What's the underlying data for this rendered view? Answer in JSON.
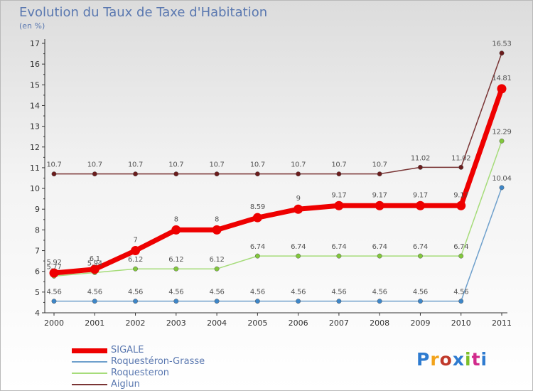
{
  "title": "Evolution du Taux de Taxe d'Habitation",
  "subtitle": "(en %)",
  "logo": {
    "text": "Proxiti",
    "colors": [
      "#2e7bd0",
      "#f2a31b",
      "#c0392b",
      "#2e7bd0",
      "#7cbf2a",
      "#d12a8c",
      "#2e7bd0"
    ]
  },
  "chart_data": {
    "type": "line",
    "x": [
      2000,
      2001,
      2002,
      2003,
      2004,
      2005,
      2006,
      2007,
      2008,
      2009,
      2010,
      2011
    ],
    "ylim": [
      4,
      17
    ],
    "yticks": [
      4,
      5,
      6,
      7,
      8,
      9,
      10,
      11,
      12,
      13,
      14,
      15,
      16,
      17
    ],
    "grid": false,
    "legend_placement": "bottom-left",
    "series": [
      {
        "name": "SIGALE",
        "color": "#ee0000",
        "style": "thick",
        "values": [
          5.92,
          6.1,
          7,
          8,
          8,
          8.59,
          9,
          9.17,
          9.17,
          9.17,
          9.17,
          14.81
        ],
        "labels": [
          "5.92",
          "6.1",
          "7",
          "8",
          "8",
          "8.59",
          "9",
          "9.17",
          "9.17",
          "9.17",
          "9.17",
          "14.81"
        ]
      },
      {
        "name": "Roquestéron-Grasse",
        "color": "#6fa0cc",
        "marker": "#3d86c8",
        "style": "thin",
        "values": [
          4.56,
          4.56,
          4.56,
          4.56,
          4.56,
          4.56,
          4.56,
          4.56,
          4.56,
          4.56,
          4.56,
          10.04
        ],
        "labels": [
          "4.56",
          "4.56",
          "4.56",
          "4.56",
          "4.56",
          "4.56",
          "4.56",
          "4.56",
          "4.56",
          "4.56",
          "4.56",
          "10.04"
        ]
      },
      {
        "name": "Roquesteron",
        "color": "#a6dc7a",
        "marker": "#82c83c",
        "style": "thin",
        "values": [
          5.77,
          5.94,
          6.12,
          6.12,
          6.12,
          6.74,
          6.74,
          6.74,
          6.74,
          6.74,
          6.74,
          12.29
        ],
        "labels": [
          "5.77",
          "5.94",
          "6.12",
          "6.12",
          "6.12",
          "6.74",
          "6.74",
          "6.74",
          "6.74",
          "6.74",
          "6.74",
          "12.29"
        ]
      },
      {
        "name": "Aiglun",
        "color": "#7a3535",
        "marker": "#6b1c1c",
        "style": "thin",
        "values": [
          10.7,
          10.7,
          10.7,
          10.7,
          10.7,
          10.7,
          10.7,
          10.7,
          10.7,
          11.02,
          11.02,
          16.53
        ],
        "labels": [
          "10.7",
          "10.7",
          "10.7",
          "10.7",
          "10.7",
          "10.7",
          "10.7",
          "10.7",
          "10.7",
          "11.02",
          "11.02",
          "16.53"
        ]
      }
    ]
  }
}
